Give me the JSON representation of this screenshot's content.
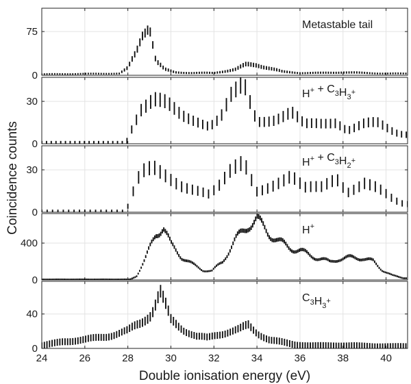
{
  "chart_data": {
    "type": "scatter",
    "style": "vertical error bars, stacked panels sharing x axis",
    "xlabel": "Double ionisation energy (eV)",
    "ylabel": "Coincidence counts",
    "xlim": [
      24,
      41
    ],
    "x_ticks": [
      24,
      26,
      28,
      30,
      32,
      34,
      36,
      38,
      40
    ],
    "grid": true,
    "color": "#111111",
    "panels": [
      {
        "id": "metastable",
        "label_parts": [
          {
            "t": "Metastable tail"
          }
        ],
        "ylim": [
          0,
          115
        ],
        "y_ticks": [
          0,
          75
        ],
        "keypoints": [
          [
            24.0,
            2
          ],
          [
            27.6,
            3
          ],
          [
            28.0,
            12
          ],
          [
            28.4,
            40
          ],
          [
            28.7,
            75
          ],
          [
            29.0,
            90
          ],
          [
            29.3,
            25
          ],
          [
            29.7,
            10
          ],
          [
            30.2,
            5
          ],
          [
            31,
            4
          ],
          [
            32,
            4
          ],
          [
            33,
            10
          ],
          [
            33.5,
            18
          ],
          [
            34.0,
            18
          ],
          [
            34.6,
            12
          ],
          [
            35.2,
            6
          ],
          [
            36,
            4
          ],
          [
            37,
            4
          ],
          [
            38,
            5
          ],
          [
            39,
            4
          ],
          [
            40,
            3
          ],
          [
            40.8,
            3
          ]
        ],
        "err": [
          0.12,
          1.2
        ]
      },
      {
        "id": "h-c3h3",
        "label_parts": [
          {
            "t": "H"
          },
          {
            "sup": "+"
          },
          {
            "t": " + C"
          },
          {
            "sub": "3"
          },
          {
            "t": "H"
          },
          {
            "sub": "3"
          },
          {
            "sup": "+"
          }
        ],
        "ylim": [
          0,
          47
        ],
        "y_ticks": [
          0,
          30
        ],
        "keypoints": [
          [
            24.0,
            0
          ],
          [
            27.9,
            0
          ],
          [
            28.2,
            12
          ],
          [
            28.6,
            25
          ],
          [
            29.2,
            30
          ],
          [
            29.8,
            27
          ],
          [
            30.5,
            20
          ],
          [
            31.2,
            17
          ],
          [
            31.8,
            13
          ],
          [
            32.3,
            18
          ],
          [
            32.8,
            32
          ],
          [
            33.4,
            40
          ],
          [
            34.0,
            16
          ],
          [
            34.8,
            18
          ],
          [
            35.6,
            22
          ],
          [
            36.2,
            13
          ],
          [
            37.0,
            14
          ],
          [
            37.7,
            16
          ],
          [
            38.2,
            10
          ],
          [
            39.0,
            14
          ],
          [
            39.6,
            14
          ],
          [
            40.4,
            8
          ],
          [
            40.8,
            7
          ]
        ],
        "err": [
          0.22,
          2.0
        ]
      },
      {
        "id": "h-c3h2",
        "label_parts": [
          {
            "t": "H"
          },
          {
            "sup": "+"
          },
          {
            "t": " + C"
          },
          {
            "sub": "3"
          },
          {
            "t": "H"
          },
          {
            "sub": "2"
          },
          {
            "sup": "+"
          }
        ],
        "ylim": [
          0,
          47
        ],
        "y_ticks": [
          0,
          30
        ],
        "keypoints": [
          [
            24.0,
            0
          ],
          [
            27.9,
            0
          ],
          [
            28.2,
            12
          ],
          [
            28.6,
            26
          ],
          [
            29.2,
            30
          ],
          [
            29.8,
            26
          ],
          [
            30.5,
            20
          ],
          [
            31.2,
            16
          ],
          [
            31.8,
            12
          ],
          [
            32.3,
            18
          ],
          [
            32.8,
            28
          ],
          [
            33.4,
            36
          ],
          [
            34.0,
            16
          ],
          [
            34.8,
            20
          ],
          [
            35.6,
            24
          ],
          [
            36.2,
            16
          ],
          [
            37.0,
            18
          ],
          [
            37.7,
            26
          ],
          [
            38.2,
            15
          ],
          [
            39.0,
            20
          ],
          [
            39.6,
            16
          ],
          [
            40.4,
            8
          ],
          [
            40.8,
            6
          ]
        ],
        "err": [
          0.25,
          1.8
        ]
      },
      {
        "id": "h",
        "label_parts": [
          {
            "t": "H"
          },
          {
            "sup": "+"
          }
        ],
        "ylim": [
          0,
          720
        ],
        "y_ticks": [
          0,
          400
        ],
        "keypoints": [
          [
            24.0,
            5
          ],
          [
            28.1,
            5
          ],
          [
            28.4,
            40
          ],
          [
            28.8,
            220
          ],
          [
            29.3,
            500
          ],
          [
            29.65,
            580
          ],
          [
            30.0,
            380
          ],
          [
            30.5,
            250
          ],
          [
            31.0,
            170
          ],
          [
            31.5,
            105
          ],
          [
            31.9,
            95
          ],
          [
            32.4,
            200
          ],
          [
            33.0,
            430
          ],
          [
            33.6,
            600
          ],
          [
            34.0,
            650
          ],
          [
            34.5,
            520
          ],
          [
            35.0,
            420
          ],
          [
            35.5,
            350
          ],
          [
            36.0,
            320
          ],
          [
            36.5,
            260
          ],
          [
            37.0,
            230
          ],
          [
            37.4,
            190
          ],
          [
            37.8,
            230
          ],
          [
            38.3,
            240
          ],
          [
            38.9,
            240
          ],
          [
            39.4,
            200
          ],
          [
            39.8,
            110
          ],
          [
            40.3,
            50
          ],
          [
            40.8,
            20
          ]
        ],
        "err": [
          0.07,
          10
        ]
      },
      {
        "id": "c3h3",
        "label_parts": [
          {
            "t": "C"
          },
          {
            "sub": "3"
          },
          {
            "t": "H"
          },
          {
            "sub": "3"
          },
          {
            "sup": "+"
          }
        ],
        "ylim": [
          0,
          78
        ],
        "y_ticks": [
          0,
          40
        ],
        "keypoints": [
          [
            24.0,
            3
          ],
          [
            25.0,
            8
          ],
          [
            26.0,
            10
          ],
          [
            27.0,
            14
          ],
          [
            28.0,
            20
          ],
          [
            28.6,
            30
          ],
          [
            29.1,
            42
          ],
          [
            29.5,
            65
          ],
          [
            30.0,
            32
          ],
          [
            30.6,
            22
          ],
          [
            31.2,
            14
          ],
          [
            31.7,
            12
          ],
          [
            32.2,
            16
          ],
          [
            32.7,
            20
          ],
          [
            33.2,
            22
          ],
          [
            33.6,
            26
          ],
          [
            34.0,
            18
          ],
          [
            34.6,
            10
          ],
          [
            35.2,
            7
          ],
          [
            35.8,
            4
          ],
          [
            36.5,
            3
          ],
          [
            37.5,
            3
          ],
          [
            38.5,
            3
          ],
          [
            39.5,
            2
          ],
          [
            40.5,
            2
          ],
          [
            40.8,
            2
          ]
        ],
        "err": [
          0.12,
          4.0
        ]
      }
    ]
  }
}
